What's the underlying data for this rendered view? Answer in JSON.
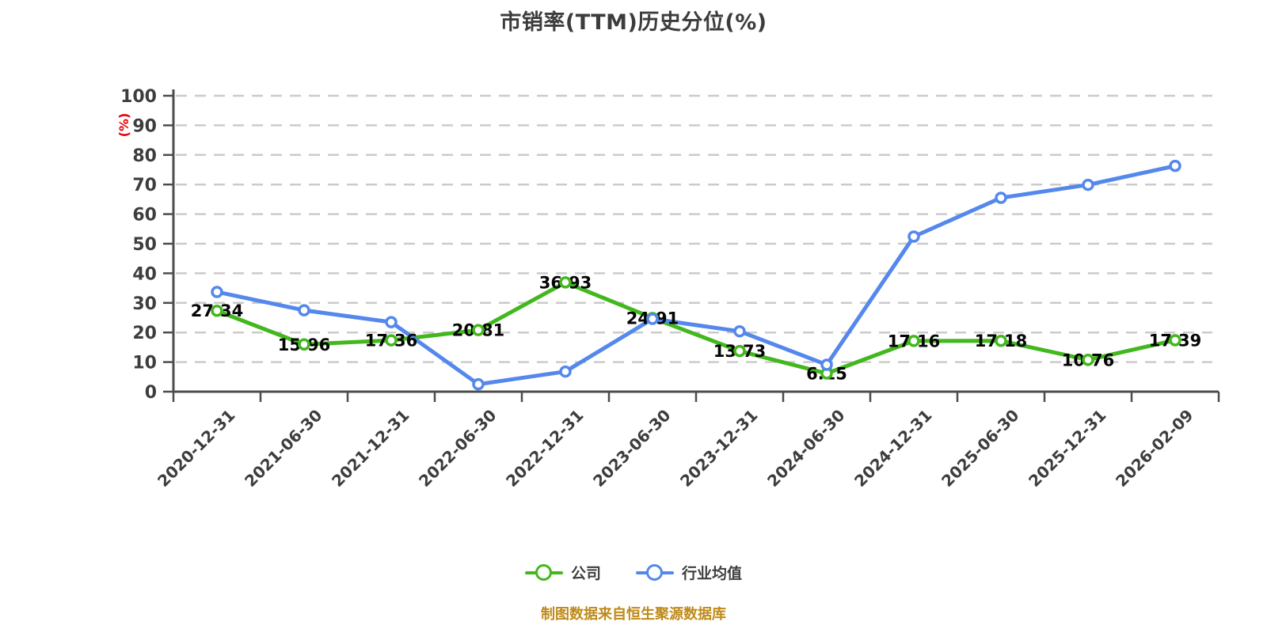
{
  "title": "市销率(TTM)历史分位(%)",
  "y_axis_unit": "(%)",
  "footer": "制图数据来自恒生聚源数据库",
  "legend": {
    "company": "公司",
    "industry": "行业均值"
  },
  "colors": {
    "company": "#42b81e",
    "industry": "#5488ec",
    "marker_fill": "#ffffff",
    "axis": "#4c4c4c",
    "grid": "#cbcbcb",
    "tick_label": "#3d3d3d",
    "data_label": "#050505",
    "unit_label": "#e60000",
    "footer_text": "#be8a1a",
    "title_text": "#3c3c3c"
  },
  "chart_data": {
    "type": "line",
    "title": "市销率(TTM)历史分位(%)",
    "ylabel": "(%)",
    "ylim": [
      0,
      100
    ],
    "ytick_step": 10,
    "grid": "dashed-horizontal",
    "legend_position": "bottom",
    "categories": [
      "2020-12-31",
      "2021-06-30",
      "2021-12-31",
      "2022-06-30",
      "2022-12-31",
      "2023-06-30",
      "2023-12-31",
      "2024-06-30",
      "2024-12-31",
      "2025-06-30",
      "2025-12-31",
      "2026-02-09"
    ],
    "series": [
      {
        "name": "公司",
        "color_key": "company",
        "values": [
          27.34,
          15.96,
          17.36,
          20.81,
          36.93,
          24.91,
          13.73,
          6.15,
          17.16,
          17.18,
          10.76,
          17.39
        ],
        "labels_visible": true
      },
      {
        "name": "行业均值",
        "color_key": "industry",
        "values": [
          33.7,
          27.5,
          23.5,
          2.5,
          6.8,
          24.6,
          20.4,
          9.1,
          52.4,
          65.5,
          69.9,
          76.3
        ],
        "labels_visible": false
      }
    ]
  }
}
